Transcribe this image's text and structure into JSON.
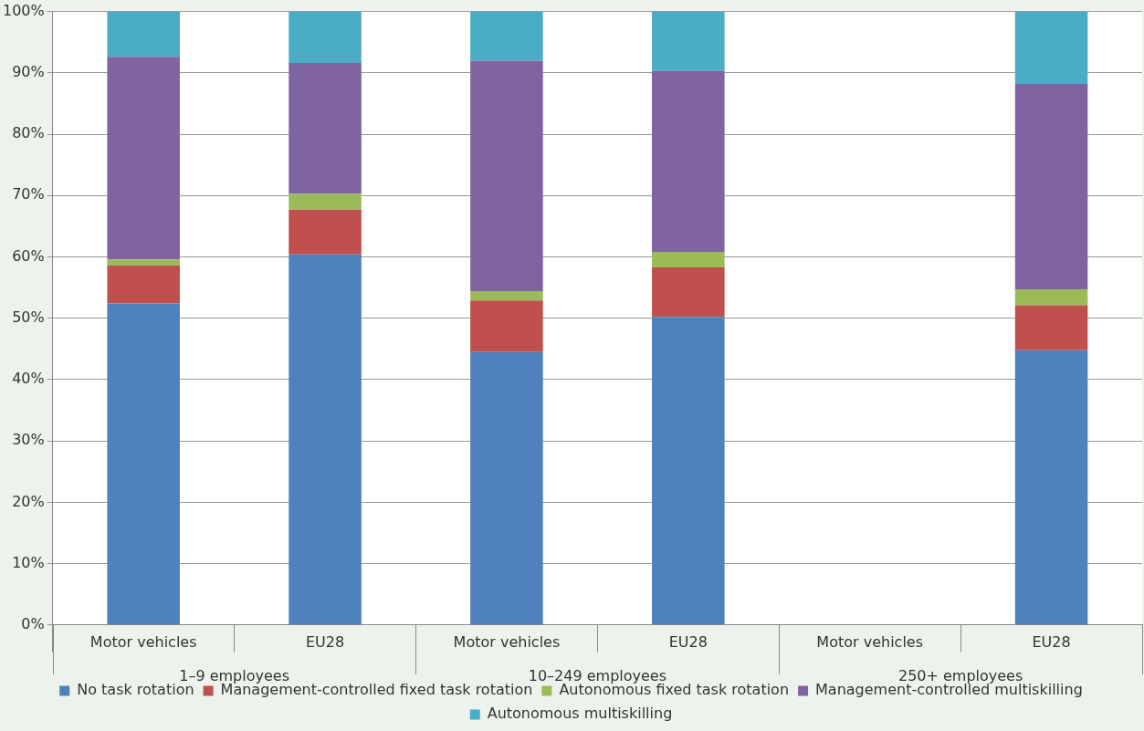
{
  "chart_data": {
    "type": "bar",
    "stacked": true,
    "categories": [
      "Motor vehicles",
      "EU28",
      "Motor vehicles",
      "EU28",
      "Motor vehicles",
      "EU28"
    ],
    "annotations": [
      "1–9 employees",
      "10–249 employees",
      "250+ employees"
    ],
    "series": [
      {
        "name": "No task rotation",
        "color": "#4f81bd",
        "values": [
          52.4,
          60.4,
          44.5,
          50.2,
          null,
          44.8
        ]
      },
      {
        "name": "Management-controlled fixed task rotation",
        "color": "#c0504d",
        "values": [
          6.2,
          7.3,
          8.4,
          8.1,
          null,
          7.3
        ]
      },
      {
        "name": "Autonomous fixed task rotation",
        "color": "#9bbb59",
        "values": [
          1.0,
          2.6,
          1.5,
          2.5,
          null,
          2.6
        ]
      },
      {
        "name": "Management-controlled multiskilling",
        "color": "#8064a2",
        "values": [
          33.0,
          21.3,
          37.6,
          29.5,
          null,
          33.5
        ]
      },
      {
        "name": "Autonomous multiskilling",
        "color": "#4bacc6",
        "values": [
          7.4,
          8.4,
          8.0,
          9.7,
          null,
          11.8
        ]
      }
    ],
    "ylim": [
      0,
      100
    ],
    "yticks": [
      {
        "value": 0,
        "label": "0%"
      },
      {
        "value": 10,
        "label": "10%"
      },
      {
        "value": 20,
        "label": "20%"
      },
      {
        "value": 30,
        "label": "30%"
      },
      {
        "value": 40,
        "label": "40%"
      },
      {
        "value": 50,
        "label": "50%"
      },
      {
        "value": 60,
        "label": "60%"
      },
      {
        "value": 70,
        "label": "70%"
      },
      {
        "value": 80,
        "label": "80%"
      },
      {
        "value": 90,
        "label": "90%"
      },
      {
        "value": 100,
        "label": "100%"
      }
    ],
    "grid": "y",
    "legend": "bottom"
  }
}
